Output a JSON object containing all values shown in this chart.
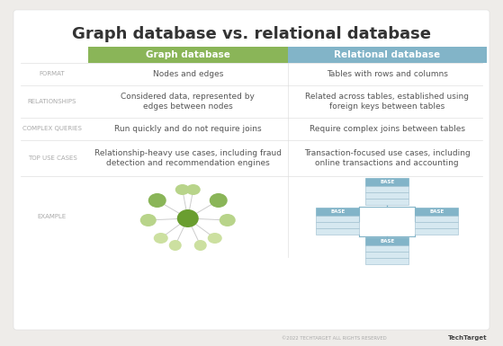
{
  "title": "Graph database vs. relational database",
  "title_fontsize": 13,
  "title_color": "#333333",
  "background_color": "#eeece9",
  "card_color": "#ffffff",
  "header_graph_color": "#8ab558",
  "header_relational_color": "#82b4c8",
  "header_text_color": "#ffffff",
  "row_label_color": "#aaaaaa",
  "row_label_fontsize": 5.0,
  "cell_text_color": "#555555",
  "cell_text_fontsize": 6.5,
  "col1_header": "Graph database",
  "col2_header": "Relational database",
  "rows": [
    {
      "label": "FORMAT",
      "col1": "Nodes and edges",
      "col2": "Tables with rows and columns"
    },
    {
      "label": "RELATIONSHIPS",
      "col1": "Considered data, represented by\nedges between nodes",
      "col2": "Related across tables, established using\nforeign keys between tables"
    },
    {
      "label": "COMPLEX QUERIES",
      "col1": "Run quickly and do not require joins",
      "col2": "Require complex joins between tables"
    },
    {
      "label": "TOP USE CASES",
      "col1": "Relationship-heavy use cases, including fraud\ndetection and recommendation engines",
      "col2": "Transaction-focused use cases, including\nonline transactions and accounting"
    },
    {
      "label": "EXAMPLE",
      "col1": "",
      "col2": ""
    }
  ],
  "node_center_color": "#6a9e30",
  "node_medium_color": "#8ab558",
  "node_small_color": "#b8d48a",
  "node_tiny_color": "#cce0a0",
  "table_header_color": "#82b4c8",
  "table_row_color": "#d6e8f0",
  "footer_text": "©2022 TECHTARGET ALL RIGHTS RESERVED",
  "footer_logo": "TechTarget"
}
